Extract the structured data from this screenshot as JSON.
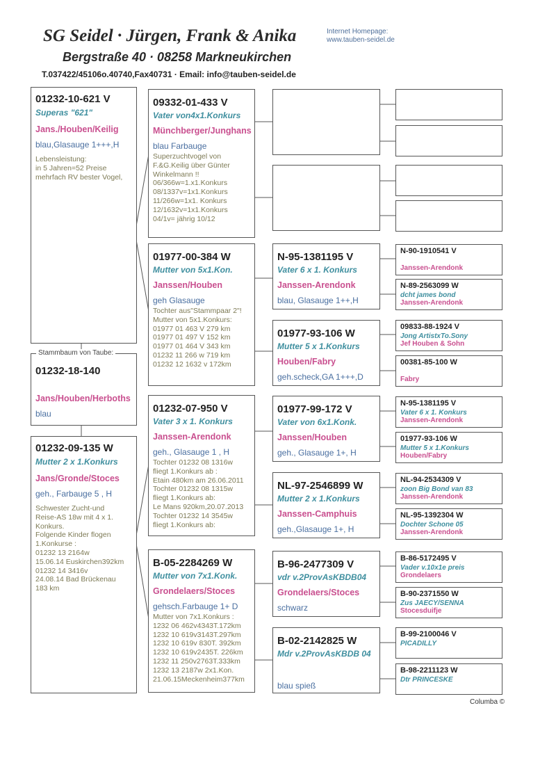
{
  "header": {
    "title": "SG Seidel · Jürgen, Frank & Anika",
    "homepage_label": "Internet Homepage:",
    "homepage_url": "www.tauben-seidel.de",
    "address": "Bergstraße 40 · 08258 Markneukirchen",
    "contact": "T.037422/45106o.40740,Fax40731 · Email: info@tauben-seidel.de"
  },
  "stammbaum_label": "Stammbaum von Taube:",
  "footer": "Columba ©",
  "colors": {
    "ring": "#222222",
    "name": "#3f8f9f",
    "strain": "#c94f8f",
    "color": "#4a6fa0",
    "notes": "#7d7a55"
  },
  "boxes": {
    "sire": {
      "ring": "01232-10-621 V",
      "name": "Superas \"621\"",
      "strain": "Jans./Houben/Keilig",
      "color": "blau,Glasauge 1+++,H",
      "notes": "Lebensleistung:\nin 5 Jahren=52 Preise\nmehrfach RV bester Vogel,"
    },
    "subject": {
      "ring": "01232-18-140",
      "strain": "Jans/Houben/Herboths",
      "color": "blau"
    },
    "dam": {
      "ring": "01232-09-135 W",
      "name": "Mutter 2 x 1.Konkurs",
      "strain": "Jans/Gronde/Stoces",
      "color": "geh., Farbauge 5 , H",
      "notes": "Schwester Zucht-und\nReise-AS 18w mit 4 x 1.\nKonkurs.\nFolgende Kinder flogen\n1.Konkurse :\n01232 13 2164w\n15.06.14 Euskirchen392km\n01232 14 3416v\n24.08.14 Bad Brückenau\n183 km"
    },
    "ss": {
      "ring": "09332-01-433 V",
      "name": "Vater von4x1.Konkurs",
      "strain": "Münchberger/Junghans",
      "color": "blau Farbauge",
      "notes": "Superzuchtvogel von\nF.&G.Keilig über Günter\nWinkelmann !!\n06/366w=1.x1.Konkurs\n08/1337v=1x1.Konkurs\n11/266w=1x1. Konkurs\n12/1632v=1x1.Konkurs\n04/1v= jährig 10/12"
    },
    "sd": {
      "ring": "01977-00-384 W",
      "name": "Mutter von 5x1.Kon.",
      "strain": "Janssen/Houben",
      "color": "geh Glasauge",
      "notes": "Tochter aus\"Stammpaar 2\"!\nMutter von 5x1.Konkurs:\n01977 01 463 V 279 km\n01977 01 497 V 152 km\n01977 01 464 V 343 km\n01232 11 266 w 719 km\n01232 12 1632 v 172km"
    },
    "ds": {
      "ring": "01232-07-950 V",
      "name": "Vater 3 x 1. Konkurs",
      "strain": "Janssen-Arendonk",
      "color": "geh., Glasauge 1 , H",
      "notes": "Tochter 01232 08 1316w\nfliegt 1.Konkurs ab :\nEtain 480km am 26.06.2011\nTochter 01232 08 1315w\nfliegt 1.Konkurs ab:\nLe Mans 920km,20.07.2013\nTochter 01232 14 3545w\nfliegt 1.Konkurs ab:"
    },
    "dd": {
      "ring": "B-05-2284269 W",
      "name": "Mutter von 7x1.Konk.",
      "strain": "Grondelaers/Stoces",
      "color": "gehsch.Farbauge 1+ D",
      "notes": "Mutter von 7x1.Konkurs :\n1232 06 462v4343T.172km\n1232 10 619v3143T.297km\n1232 10 619v 830T. 392km\n1232 10 619v2435T. 226km\n1232 11 250v2763T.333km\n1232 13 2187w 2x1.Kon.\n21.06.15Meckenheim377km"
    },
    "sss": {},
    "ssd": {},
    "sds": {
      "ring": "N-95-1381195 V",
      "name": "Vater 6 x 1. Konkurs",
      "strain": "Janssen-Arendonk",
      "color": "blau, Glasauge 1++,H"
    },
    "sdd": {
      "ring": "01977-93-106 W",
      "name": "Mutter 5 x 1.Konkurs",
      "strain": "Houben/Fabry",
      "color": "geh.scheck,GA 1+++,D"
    },
    "dss": {
      "ring": "01977-99-172 V",
      "name": "Vater von 6x1.Konk.",
      "strain": "Janssen/Houben",
      "color": "geh., Glasauge 1+, H"
    },
    "dsd": {
      "ring": "NL-97-2546899 W",
      "name": "Mutter 2 x 1.Konkurs",
      "strain": "Janssen-Camphuis",
      "color": "geh.,Glasauge 1+, H"
    },
    "dds": {
      "ring": "B-96-2477309 V",
      "name": "vdr v.2ProvAsKBDB04",
      "strain": "Grondelaers/Stoces",
      "color": "schwarz"
    },
    "ddd": {
      "ring": "B-02-2142825 W",
      "name": "Mdr v.2ProvAsKBDB 04",
      "strain": "",
      "color": "blau spieß"
    },
    "g1": {},
    "g2": {},
    "g3": {},
    "g4": {},
    "g5": {
      "ring": "N-90-1910541 V",
      "name": "",
      "strain": "Janssen-Arendonk"
    },
    "g6": {
      "ring": "N-89-2563099 W",
      "name": "dcht james bond",
      "strain": "Janssen-Arendonk"
    },
    "g7": {
      "ring": "09833-88-1924 V",
      "name": "Jong ArtistxTo.Sony",
      "strain": "Jef Houben & Sohn"
    },
    "g8": {
      "ring": "00381-85-100 W",
      "name": "",
      "strain": "Fabry"
    },
    "g9": {
      "ring": "N-95-1381195 V",
      "name": "Vater 6 x 1. Konkurs",
      "strain": "Janssen-Arendonk"
    },
    "g10": {
      "ring": "01977-93-106 W",
      "name": "Mutter 5 x 1.Konkurs",
      "strain": "Houben/Fabry"
    },
    "g11": {
      "ring": "NL-94-2534309 V",
      "name": "zoon Big Bond van 83",
      "strain": "Janssen-Arendonk"
    },
    "g12": {
      "ring": "NL-95-1392304 W",
      "name": "Dochter Schone 05",
      "strain": "Janssen-Arendonk"
    },
    "g13": {
      "ring": "B-86-5172495 V",
      "name": "Vader v.10x1e preis",
      "strain": "Grondelaers"
    },
    "g14": {
      "ring": "B-90-2371550 W",
      "name": "Zus JAECY/SENNA",
      "strain": "Stocesduifje"
    },
    "g15": {
      "ring": "B-99-2100046 V",
      "name": "PICADILLY",
      "strain": ""
    },
    "g16": {
      "ring": "B-98-2211123 W",
      "name": "Dtr PRINCESKE",
      "strain": ""
    }
  }
}
